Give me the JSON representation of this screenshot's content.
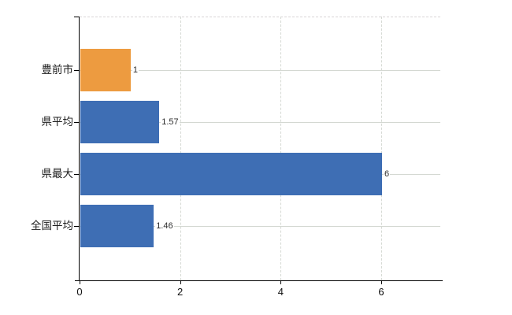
{
  "chart_data": {
    "type": "bar",
    "orientation": "horizontal",
    "title": "",
    "xlabel": "",
    "ylabel": "",
    "categories": [
      "豊前市",
      "県平均",
      "県最大",
      "全国平均"
    ],
    "values": [
      1,
      1.57,
      6,
      1.46
    ],
    "value_labels": [
      "1",
      "1.57",
      "6",
      "1.46"
    ],
    "bar_colors": [
      "#ED9B40",
      "#3E6EB4",
      "#3E6EB4",
      "#3E6EB4"
    ],
    "highlight_color": "#ED9B40",
    "default_color": "#3E6EB4",
    "xlim": [
      0,
      7.17
    ],
    "x_ticks": [
      0,
      2,
      4,
      6
    ],
    "x_tick_labels": [
      "0",
      "2",
      "4",
      "6"
    ],
    "grid": true,
    "gridline_color": "#d4d8d2",
    "axis_color": "#000000",
    "background_color": "#ffffff",
    "legend": null
  }
}
